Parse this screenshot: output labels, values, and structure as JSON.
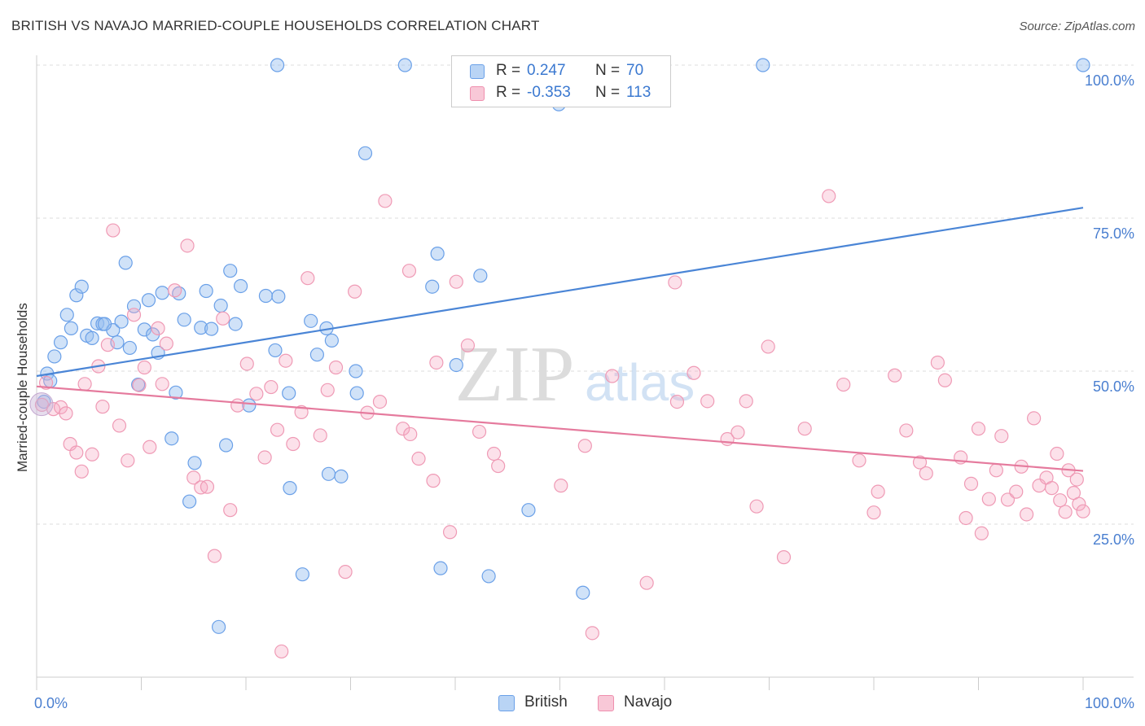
{
  "title": "BRITISH VS NAVAJO MARRIED-COUPLE HOUSEHOLDS CORRELATION CHART",
  "source": "Source: ZipAtlas.com",
  "watermark": {
    "zip": "ZIP",
    "atlas": "atlas"
  },
  "legend": [
    {
      "name": "British",
      "r_label": "R =",
      "r_value": "0.247",
      "n_label": "N =",
      "n_value": "70",
      "color": "#6aa0e8",
      "fill": "#b9d4f5"
    },
    {
      "name": "Navajo",
      "r_label": "R =",
      "r_value": "-0.353",
      "n_label": "N =",
      "n_value": "113",
      "color": "#ef8fae",
      "fill": "#f8c8d7"
    }
  ],
  "chart_data": {
    "type": "scatter",
    "title": "BRITISH VS NAVAJO MARRIED-COUPLE HOUSEHOLDS CORRELATION CHART",
    "xlabel": "",
    "ylabel": "Married-couple Households",
    "xlim": [
      0,
      100
    ],
    "ylim": [
      0,
      102
    ],
    "x_tick_labels": [
      "0.0%",
      "100.0%"
    ],
    "y_ticks": [
      25,
      50,
      75,
      100
    ],
    "y_tick_labels": [
      "25.0%",
      "50.0%",
      "75.0%",
      "100.0%"
    ],
    "series": [
      {
        "name": "British",
        "color": "#4a85d6",
        "trend": {
          "x": [
            0,
            100
          ],
          "y": [
            49.2,
            76.7
          ]
        },
        "points": [
          [
            0.7,
            45.0
          ],
          [
            1.0,
            49.6
          ],
          [
            1.3,
            48.4
          ],
          [
            1.7,
            52.4
          ],
          [
            2.3,
            54.7
          ],
          [
            2.9,
            59.2
          ],
          [
            3.3,
            57.0
          ],
          [
            3.8,
            62.4
          ],
          [
            4.3,
            63.8
          ],
          [
            4.8,
            55.8
          ],
          [
            5.3,
            55.4
          ],
          [
            5.8,
            57.8
          ],
          [
            6.3,
            57.7
          ],
          [
            7.3,
            56.7
          ],
          [
            7.7,
            54.7
          ],
          [
            8.1,
            58.1
          ],
          [
            8.5,
            67.7
          ],
          [
            8.9,
            53.8
          ],
          [
            9.3,
            60.6
          ],
          [
            9.7,
            47.8
          ],
          [
            10.3,
            56.8
          ],
          [
            10.7,
            61.6
          ],
          [
            11.1,
            56.0
          ],
          [
            11.6,
            53.0
          ],
          [
            12.0,
            62.8
          ],
          [
            12.9,
            39.0
          ],
          [
            13.3,
            46.5
          ],
          [
            13.6,
            62.7
          ],
          [
            14.1,
            58.4
          ],
          [
            14.6,
            28.7
          ],
          [
            15.1,
            35.0
          ],
          [
            15.7,
            57.1
          ],
          [
            16.2,
            63.1
          ],
          [
            16.7,
            56.9
          ],
          [
            17.6,
            60.7
          ],
          [
            18.1,
            37.9
          ],
          [
            18.5,
            66.4
          ],
          [
            19.0,
            57.7
          ],
          [
            19.5,
            63.9
          ],
          [
            20.3,
            44.4
          ],
          [
            21.9,
            62.3
          ],
          [
            22.8,
            53.4
          ],
          [
            23.1,
            62.2
          ],
          [
            23.0,
            100.0
          ],
          [
            24.1,
            46.4
          ],
          [
            24.2,
            30.9
          ],
          [
            25.4,
            16.8
          ],
          [
            26.2,
            58.2
          ],
          [
            26.8,
            52.7
          ],
          [
            27.7,
            57.0
          ],
          [
            27.9,
            33.2
          ],
          [
            28.2,
            55.0
          ],
          [
            29.1,
            32.8
          ],
          [
            30.5,
            50.0
          ],
          [
            31.4,
            85.6
          ],
          [
            30.6,
            46.4
          ],
          [
            35.2,
            100.0
          ],
          [
            37.8,
            63.8
          ],
          [
            38.3,
            69.2
          ],
          [
            38.6,
            17.8
          ],
          [
            40.1,
            51.0
          ],
          [
            42.4,
            65.6
          ],
          [
            43.2,
            16.5
          ],
          [
            47.0,
            27.3
          ],
          [
            49.9,
            93.6
          ],
          [
            52.2,
            13.8
          ],
          [
            69.4,
            100.0
          ],
          [
            100.0,
            100.0
          ],
          [
            17.4,
            8.2
          ],
          [
            6.5,
            57.7
          ]
        ]
      },
      {
        "name": "Navajo",
        "color": "#e57a9d",
        "trend": {
          "x": [
            0,
            100
          ],
          "y": [
            47.5,
            33.7
          ]
        },
        "points": [
          [
            0.5,
            44.5
          ],
          [
            0.9,
            48.1
          ],
          [
            1.6,
            43.8
          ],
          [
            2.3,
            44.1
          ],
          [
            2.8,
            43.1
          ],
          [
            3.2,
            38.1
          ],
          [
            3.8,
            36.7
          ],
          [
            4.3,
            33.6
          ],
          [
            4.6,
            47.9
          ],
          [
            5.3,
            36.4
          ],
          [
            5.9,
            50.8
          ],
          [
            6.3,
            44.2
          ],
          [
            6.8,
            54.3
          ],
          [
            7.3,
            73.0
          ],
          [
            7.9,
            41.1
          ],
          [
            8.7,
            35.4
          ],
          [
            9.3,
            59.2
          ],
          [
            9.8,
            47.7
          ],
          [
            10.3,
            50.6
          ],
          [
            10.8,
            37.6
          ],
          [
            11.6,
            57.0
          ],
          [
            12.0,
            47.9
          ],
          [
            12.4,
            54.5
          ],
          [
            13.2,
            63.2
          ],
          [
            14.4,
            70.5
          ],
          [
            15.0,
            32.6
          ],
          [
            15.7,
            31.0
          ],
          [
            16.3,
            31.1
          ],
          [
            17.0,
            19.8
          ],
          [
            17.8,
            58.6
          ],
          [
            18.5,
            27.3
          ],
          [
            19.2,
            44.4
          ],
          [
            20.1,
            51.2
          ],
          [
            21.0,
            46.3
          ],
          [
            21.8,
            35.9
          ],
          [
            22.4,
            47.4
          ],
          [
            23.0,
            40.4
          ],
          [
            23.8,
            51.7
          ],
          [
            24.5,
            38.1
          ],
          [
            25.3,
            43.3
          ],
          [
            25.9,
            65.2
          ],
          [
            27.1,
            39.5
          ],
          [
            27.8,
            46.9
          ],
          [
            28.6,
            50.6
          ],
          [
            29.5,
            17.2
          ],
          [
            30.4,
            63.0
          ],
          [
            31.6,
            43.2
          ],
          [
            32.8,
            45.0
          ],
          [
            33.3,
            77.8
          ],
          [
            35.0,
            40.6
          ],
          [
            35.7,
            39.7
          ],
          [
            35.6,
            66.4
          ],
          [
            36.5,
            35.7
          ],
          [
            37.9,
            32.1
          ],
          [
            38.2,
            51.4
          ],
          [
            39.5,
            23.7
          ],
          [
            40.1,
            64.6
          ],
          [
            41.2,
            54.2
          ],
          [
            42.3,
            40.1
          ],
          [
            43.7,
            36.5
          ],
          [
            44.1,
            34.5
          ],
          [
            50.1,
            31.3
          ],
          [
            52.4,
            37.8
          ],
          [
            53.1,
            7.2
          ],
          [
            55.0,
            49.2
          ],
          [
            58.3,
            15.4
          ],
          [
            61.0,
            64.5
          ],
          [
            61.2,
            45.0
          ],
          [
            62.8,
            49.7
          ],
          [
            64.1,
            45.1
          ],
          [
            66.0,
            38.9
          ],
          [
            67.0,
            40.0
          ],
          [
            67.8,
            45.1
          ],
          [
            68.8,
            27.9
          ],
          [
            69.9,
            54.0
          ],
          [
            71.4,
            19.6
          ],
          [
            73.4,
            40.6
          ],
          [
            75.7,
            78.6
          ],
          [
            77.1,
            47.8
          ],
          [
            78.6,
            35.4
          ],
          [
            80.0,
            26.9
          ],
          [
            80.4,
            30.3
          ],
          [
            82.0,
            49.3
          ],
          [
            83.1,
            40.3
          ],
          [
            84.4,
            35.1
          ],
          [
            85.0,
            33.3
          ],
          [
            86.1,
            51.4
          ],
          [
            86.8,
            48.5
          ],
          [
            88.3,
            35.9
          ],
          [
            88.8,
            26.0
          ],
          [
            89.3,
            31.6
          ],
          [
            90.0,
            40.6
          ],
          [
            90.3,
            23.5
          ],
          [
            91.0,
            29.1
          ],
          [
            91.7,
            33.8
          ],
          [
            92.2,
            39.4
          ],
          [
            92.8,
            29.0
          ],
          [
            93.6,
            30.3
          ],
          [
            94.1,
            34.4
          ],
          [
            94.6,
            26.6
          ],
          [
            95.3,
            42.3
          ],
          [
            95.8,
            31.3
          ],
          [
            96.5,
            32.6
          ],
          [
            97.0,
            30.9
          ],
          [
            97.5,
            36.5
          ],
          [
            97.8,
            28.9
          ],
          [
            98.3,
            27.0
          ],
          [
            98.6,
            33.8
          ],
          [
            99.1,
            30.1
          ],
          [
            99.4,
            32.3
          ],
          [
            99.6,
            28.3
          ],
          [
            100.0,
            27.1
          ],
          [
            23.4,
            4.2
          ]
        ]
      }
    ]
  }
}
